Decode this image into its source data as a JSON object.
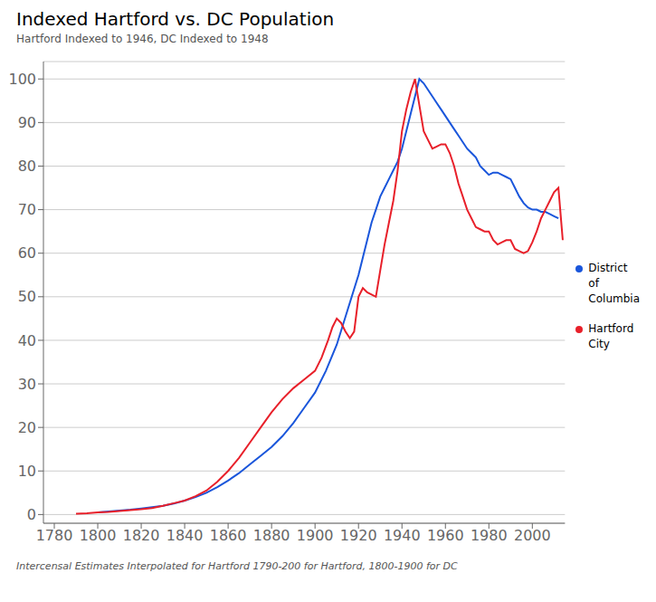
{
  "chart_data": {
    "type": "line",
    "title": "Indexed Hartford vs. DC Population",
    "subtitle": "Hartford Indexed to 1946, DC Indexed to 1948",
    "annotations": [
      "Intercensal Estimates Interpolated for Hartford 1790-200 for Hartford, 1800-1900 for DC"
    ],
    "xlim": [
      1775,
      2015
    ],
    "ylim": [
      -2,
      104
    ],
    "xticks": [
      1780,
      1800,
      1820,
      1840,
      1860,
      1880,
      1900,
      1920,
      1940,
      1960,
      1980,
      2000
    ],
    "yticks": [
      0,
      10,
      20,
      30,
      40,
      50,
      60,
      70,
      80,
      90,
      100
    ],
    "grid": "y",
    "legend": "right",
    "series": [
      {
        "name": "District\nof\nColumbia",
        "color": "#1a56db",
        "x": [
          1800,
          1805,
          1810,
          1815,
          1820,
          1825,
          1830,
          1835,
          1840,
          1845,
          1850,
          1855,
          1860,
          1865,
          1870,
          1875,
          1880,
          1885,
          1890,
          1895,
          1900,
          1905,
          1910,
          1915,
          1920,
          1922,
          1924,
          1926,
          1928,
          1930,
          1932,
          1934,
          1936,
          1938,
          1940,
          1942,
          1944,
          1946,
          1948,
          1950,
          1952,
          1954,
          1956,
          1958,
          1960,
          1962,
          1964,
          1966,
          1968,
          1970,
          1972,
          1974,
          1976,
          1978,
          1980,
          1982,
          1984,
          1986,
          1988,
          1990,
          1992,
          1994,
          1996,
          1998,
          2000,
          2002,
          2004,
          2006,
          2008,
          2010,
          2012
        ],
        "values": [
          0.5,
          0.7,
          0.9,
          1.1,
          1.4,
          1.7,
          2.0,
          2.5,
          3.2,
          4.0,
          5.0,
          6.3,
          7.8,
          9.5,
          11.5,
          13.5,
          15.5,
          18.0,
          21.0,
          24.5,
          28.0,
          33.0,
          39.0,
          47.0,
          55.0,
          59.0,
          63.0,
          67.0,
          70.0,
          73.0,
          75.0,
          77.0,
          79.0,
          81.0,
          84.0,
          88.0,
          92.0,
          96.0,
          100.0,
          99.0,
          97.5,
          96.0,
          94.5,
          93.0,
          91.5,
          90.0,
          88.5,
          87.0,
          85.5,
          84.0,
          83.0,
          82.0,
          80.0,
          79.0,
          78.0,
          78.5,
          78.5,
          78.0,
          77.5,
          77.0,
          75.0,
          73.0,
          71.5,
          70.5,
          70.0,
          70.0,
          69.5,
          69.5,
          69.0,
          68.5,
          68.0
        ]
      },
      {
        "name": "Hartford\nCity",
        "color": "#e8202a",
        "x": [
          1790,
          1795,
          1800,
          1805,
          1810,
          1815,
          1820,
          1825,
          1830,
          1835,
          1840,
          1845,
          1850,
          1855,
          1860,
          1865,
          1870,
          1875,
          1880,
          1885,
          1890,
          1895,
          1900,
          1903,
          1906,
          1908,
          1910,
          1912,
          1914,
          1916,
          1918,
          1920,
          1922,
          1924,
          1926,
          1928,
          1930,
          1932,
          1934,
          1936,
          1938,
          1940,
          1942,
          1944,
          1946,
          1948,
          1950,
          1952,
          1954,
          1956,
          1958,
          1960,
          1962,
          1964,
          1966,
          1968,
          1970,
          1972,
          1974,
          1976,
          1978,
          1980,
          1982,
          1984,
          1986,
          1988,
          1990,
          1992,
          1994,
          1996,
          1998,
          2000,
          2002,
          2004,
          2006,
          2008,
          2010,
          2012,
          2014
        ],
        "values": [
          0.2,
          0.3,
          0.5,
          0.6,
          0.8,
          1.0,
          1.2,
          1.5,
          2.0,
          2.6,
          3.2,
          4.2,
          5.5,
          7.5,
          10.0,
          13.0,
          16.5,
          20.0,
          23.5,
          26.5,
          29.0,
          31.0,
          33.0,
          36.0,
          40.0,
          43.0,
          45.0,
          44.0,
          42.0,
          40.5,
          42.0,
          50.0,
          52.0,
          51.0,
          50.5,
          50.0,
          56.0,
          62.0,
          67.0,
          72.0,
          79.0,
          88.0,
          93.0,
          97.0,
          100.0,
          94.0,
          88.0,
          86.0,
          84.0,
          84.5,
          85.0,
          85.0,
          83.0,
          80.0,
          76.0,
          73.0,
          70.0,
          68.0,
          66.0,
          65.5,
          65.0,
          65.0,
          63.0,
          62.0,
          62.5,
          63.0,
          63.0,
          61.0,
          60.5,
          60.0,
          60.5,
          62.5,
          65.0,
          68.0,
          70.0,
          72.0,
          74.0,
          75.0,
          63.0
        ]
      }
    ]
  }
}
